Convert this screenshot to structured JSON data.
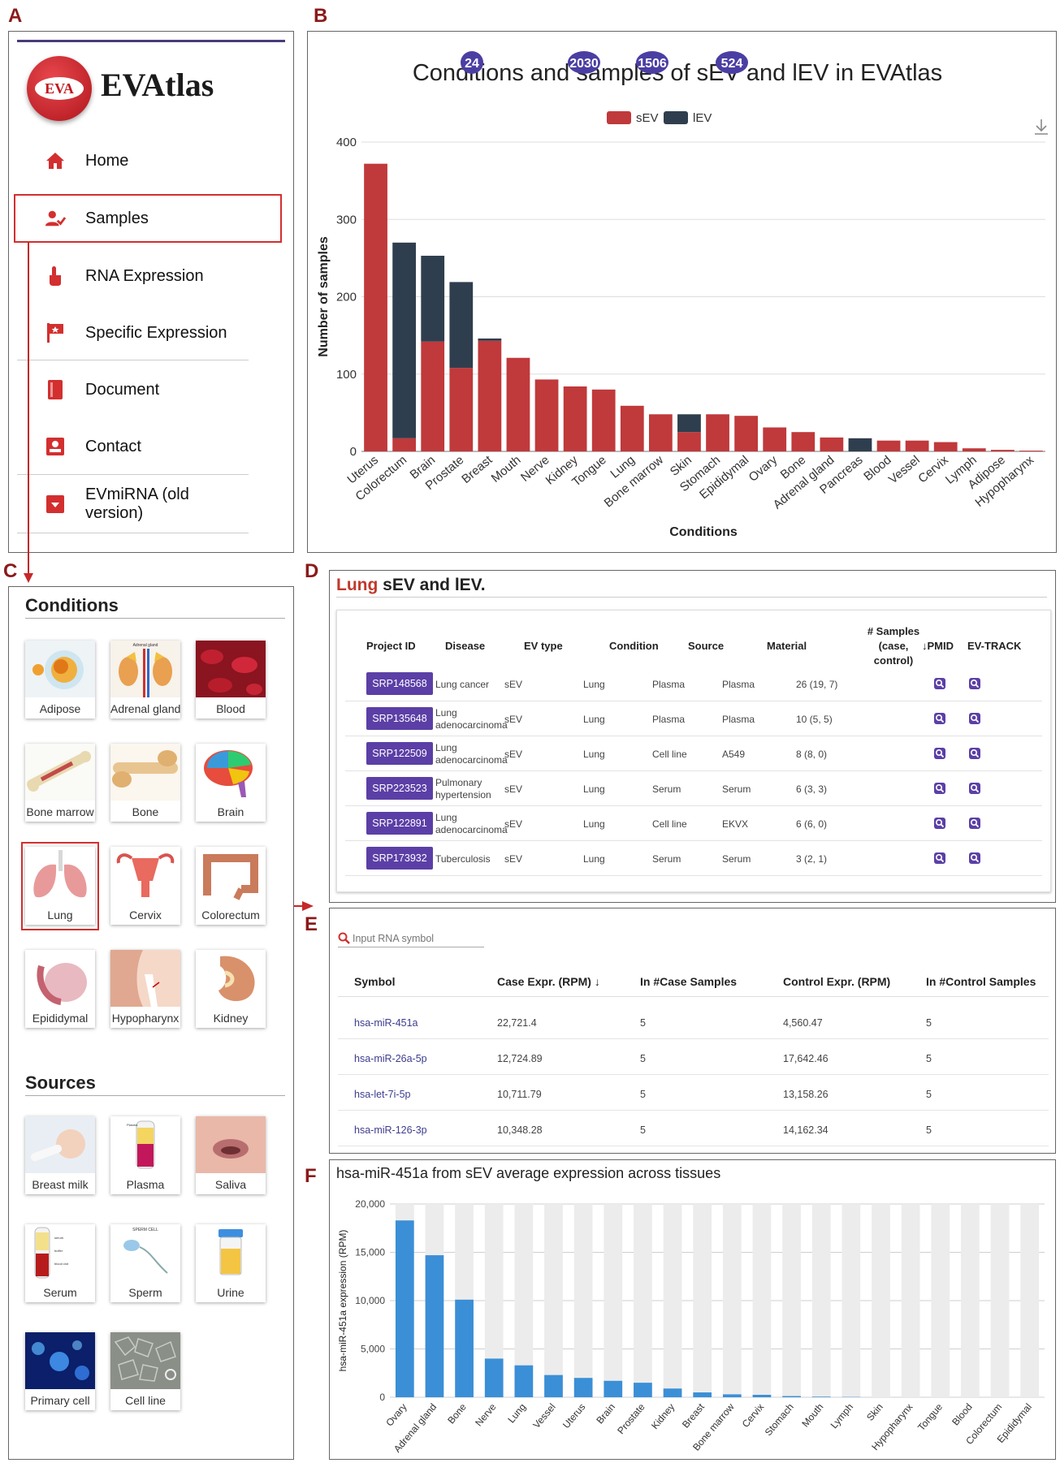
{
  "panel_letters": {
    "a": "A",
    "b": "B",
    "c": "C",
    "d": "D",
    "e": "E",
    "f": "F"
  },
  "panelA": {
    "logo_badge": "EVA",
    "brand": "EVAtlas",
    "nav": [
      {
        "label": "Home",
        "icon": "home-icon"
      },
      {
        "label": "Samples",
        "icon": "user-check-icon"
      },
      {
        "label": "RNA Expression",
        "icon": "hand-pointer-icon"
      },
      {
        "label": "Specific Expression",
        "icon": "flag-icon"
      },
      {
        "label": "Document",
        "icon": "book-icon"
      },
      {
        "label": "Contact",
        "icon": "contact-card-icon"
      },
      {
        "label": "EVmiRNA (old version)",
        "icon": "download-box-icon"
      }
    ],
    "accent": "#d32f2f"
  },
  "panelB": {
    "badges": [
      "24",
      "2030",
      "1506",
      "524"
    ],
    "colors": {
      "sEV": "#c0393b",
      "lEV": "#2f3e4e",
      "badge": "#4b3ea3"
    }
  },
  "chart_data": [
    {
      "type": "bar",
      "title": "Conditions and samples of sEV and lEV in EVAtlas",
      "xlabel": "Conditions",
      "ylabel": "Number of samples",
      "ylim": [
        0,
        400
      ],
      "yticks": [
        "0",
        "100",
        "200",
        "300",
        "400"
      ],
      "legend_position": "top-center",
      "stacked": true,
      "categories": [
        "Uterus",
        "Colorectum",
        "Brain",
        "Prostate",
        "Breast",
        "Mouth",
        "Nerve",
        "Kidney",
        "Tongue",
        "Lung",
        "Bone marrow",
        "Skin",
        "Stomach",
        "Epididymal",
        "Ovary",
        "Bone",
        "Adrenal gland",
        "Pancreas",
        "Blood",
        "Vessel",
        "Cervix",
        "Lymph",
        "Adipose",
        "Hypopharynx"
      ],
      "series": [
        {
          "name": "sEV",
          "values": [
            372,
            17,
            142,
            108,
            143,
            121,
            93,
            84,
            80,
            59,
            48,
            25,
            48,
            46,
            31,
            25,
            18,
            0,
            14,
            14,
            12,
            4,
            2,
            1
          ]
        },
        {
          "name": "lEV",
          "values": [
            0,
            253,
            111,
            111,
            3,
            0,
            0,
            0,
            0,
            0,
            0,
            23,
            0,
            0,
            0,
            0,
            0,
            17,
            0,
            0,
            0,
            0,
            0,
            0
          ]
        }
      ]
    },
    {
      "type": "bar",
      "title": "hsa-miR-451a from sEV average expression across tissues",
      "ylabel": "hsa-miR-451a expression (RPM)",
      "ylim": [
        0,
        20000
      ],
      "yticks": [
        "0",
        "5,000",
        "10,000",
        "15,000",
        "20,000"
      ],
      "categories": [
        "Ovary",
        "Adrenal gland",
        "Bone",
        "Nerve",
        "Lung",
        "Vessel",
        "Uterus",
        "Brain",
        "Prostate",
        "Kidney",
        "Breast",
        "Bone marrow",
        "Cervix",
        "Stomach",
        "Mouth",
        "Lymph",
        "Skin",
        "Hypopharynx",
        "Tongue",
        "Blood",
        "Colorectum",
        "Epididymal"
      ],
      "values": [
        18300,
        14700,
        10100,
        4000,
        3300,
        2300,
        2000,
        1700,
        1500,
        900,
        500,
        300,
        250,
        120,
        60,
        30,
        0,
        0,
        0,
        0,
        0,
        0
      ]
    }
  ],
  "panelC": {
    "conditions_title": "Conditions",
    "sources_title": "Sources",
    "conditions": [
      "Adipose",
      "Adrenal gland",
      "Blood",
      "Bone marrow",
      "Bone",
      "Brain",
      "Lung",
      "Cervix",
      "Colorectum",
      "Epididymal",
      "Hypopharynx",
      "Kidney"
    ],
    "sources": [
      "Breast milk",
      "Plasma",
      "Saliva",
      "Serum",
      "Sperm",
      "Urine",
      "Primary cell",
      "Cell line"
    ],
    "illustration_labels": {
      "adrenal": "Adrenal gland",
      "bone": "Bone/Bone",
      "serum_top": "serum",
      "serum_mid": "buffer",
      "serum_bot": "blood clot",
      "sperm": "SPERM CELL",
      "plasma": "Plasma"
    }
  },
  "panelD": {
    "title_highlight": "Lung",
    "title_rest": " sEV and lEV.",
    "headers": {
      "project": "Project ID",
      "disease": "Disease",
      "evtype": "EV type",
      "condition": "Condition",
      "source": "Source",
      "material": "Material",
      "samples1": "# Samples",
      "samples2": "(case,",
      "samples3": "control)",
      "pmid": "↓PMID",
      "evtrack": "EV-TRACK"
    },
    "rows": [
      {
        "id": "SRP148568",
        "disease1": "Lung cancer",
        "disease2": "",
        "ev": "sEV",
        "cond": "Lung",
        "src": "Plasma",
        "mat": "Plasma",
        "n": "26 (19, 7)"
      },
      {
        "id": "SRP135648",
        "disease1": "Lung",
        "disease2": "adenocarcinoma",
        "ev": "sEV",
        "cond": "Lung",
        "src": "Plasma",
        "mat": "Plasma",
        "n": "10 (5, 5)"
      },
      {
        "id": "SRP122509",
        "disease1": "Lung",
        "disease2": "adenocarcinoma",
        "ev": "sEV",
        "cond": "Lung",
        "src": "Cell line",
        "mat": "A549",
        "n": "8 (8, 0)"
      },
      {
        "id": "SRP223523",
        "disease1": "Pulmonary",
        "disease2": "hypertension",
        "ev": "sEV",
        "cond": "Lung",
        "src": "Serum",
        "mat": "Serum",
        "n": "6 (3, 3)"
      },
      {
        "id": "SRP122891",
        "disease1": "Lung",
        "disease2": "adenocarcinoma",
        "ev": "sEV",
        "cond": "Lung",
        "src": "Cell line",
        "mat": "EKVX",
        "n": "6 (6, 0)"
      },
      {
        "id": "SRP173932",
        "disease1": "Tuberculosis",
        "disease2": "",
        "ev": "sEV",
        "cond": "Lung",
        "src": "Serum",
        "mat": "Serum",
        "n": "3 (2, 1)"
      }
    ],
    "button_color": "#5b3fa6"
  },
  "panelE": {
    "search_placeholder": "Input RNA symbol",
    "headers": {
      "symbol": "Symbol",
      "case_expr": "Case Expr. (RPM) ↓",
      "case_n": "In #Case Samples",
      "ctrl_expr": "Control Expr. (RPM)",
      "ctrl_n": "In #Control Samples"
    },
    "rows": [
      {
        "symbol": "hsa-miR-451a",
        "case": "22,721.4",
        "case_n": "5",
        "ctrl": "4,560.47",
        "ctrl_n": "5"
      },
      {
        "symbol": "hsa-miR-26a-5p",
        "case": "12,724.89",
        "case_n": "5",
        "ctrl": "17,642.46",
        "ctrl_n": "5"
      },
      {
        "symbol": "hsa-let-7i-5p",
        "case": "10,711.79",
        "case_n": "5",
        "ctrl": "13,158.26",
        "ctrl_n": "5"
      },
      {
        "symbol": "hsa-miR-126-3p",
        "case": "10,348.28",
        "case_n": "5",
        "ctrl": "14,162.34",
        "ctrl_n": "5"
      }
    ]
  }
}
